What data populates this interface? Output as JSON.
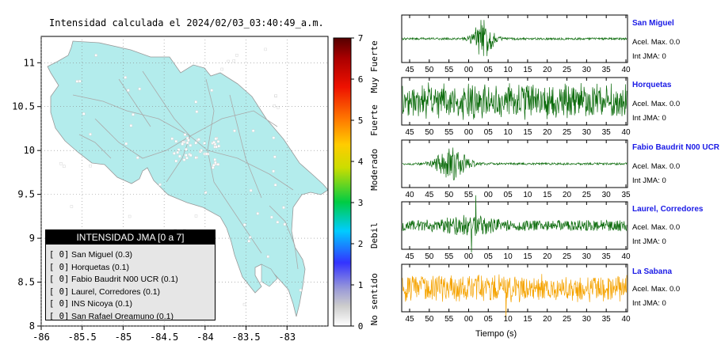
{
  "map": {
    "title": "Intensidad calculada el 2024/02/03_03:40:49_a.m.",
    "xticks": [
      "-86",
      "-85.5",
      "-85",
      "-84.5",
      "-84",
      "-83.5",
      "-83"
    ],
    "yticks": [
      "11",
      "10.5",
      "10",
      "9.5",
      "9",
      "8.5",
      "8"
    ],
    "land_color": "#b3ecec",
    "legend_title": "INTENSIDAD JMA [0 a 7]",
    "legend_items": [
      {
        "bracket": "[ 0]",
        "text": "San Miguel (0.3)"
      },
      {
        "bracket": "[ 0]",
        "text": "Horquetas (0.1)"
      },
      {
        "bracket": "[ 0]",
        "text": "Fabio Baudrit N00 UCR (0.1)"
      },
      {
        "bracket": "[ 0]",
        "text": "Laurel, Corredores (0.1)"
      },
      {
        "bracket": "[ 0]",
        "text": "INS Nicoya (0.1)"
      },
      {
        "bracket": "[ 0]",
        "text": "San Rafael Oreamuno (0.1)"
      }
    ]
  },
  "colorbar": {
    "ticks": [
      "7",
      "6",
      "5",
      "4",
      "3",
      "2",
      "1",
      "0"
    ],
    "labels": [
      "Muy Fuerte",
      "Fuerte",
      "Moderado",
      "Debil",
      "No sentido"
    ]
  },
  "stations": [
    {
      "name": "San Miguel",
      "acel": "Acel. Max. 0.0",
      "jma": "Int JMA: 0",
      "ticks": [
        "45",
        "50",
        "55",
        "00",
        "05",
        "10",
        "15",
        "20",
        "25",
        "30",
        "35",
        "40"
      ],
      "color": "#0b6b0b"
    },
    {
      "name": "Horquetas",
      "acel": "Acel. Max. 0.0",
      "jma": "Int JMA: 0",
      "ticks": [
        "45",
        "50",
        "55",
        "00",
        "05",
        "10",
        "15",
        "20",
        "25",
        "30",
        "35",
        "40"
      ],
      "color": "#0b6b0b"
    },
    {
      "name": "Fabio Baudrit N00 UCR",
      "acel": "Acel. Max. 0.0",
      "jma": "Int JMA: 0",
      "ticks": [
        "40",
        "45",
        "50",
        "55",
        "00",
        "05",
        "10",
        "15",
        "20",
        "25",
        "30",
        "35"
      ],
      "color": "#0b6b0b"
    },
    {
      "name": "Laurel, Corredores",
      "acel": "Acel. Max. 0.0",
      "jma": "Int JMA: 0",
      "ticks": [
        "45",
        "50",
        "55",
        "00",
        "05",
        "10",
        "15",
        "20",
        "25",
        "30",
        "35",
        "40"
      ],
      "color": "#0b6b0b"
    },
    {
      "name": "La Sabana",
      "acel": "Acel. Max. 0.0",
      "jma": "Int JMA: 0",
      "ticks": [
        "45",
        "50",
        "55",
        "00",
        "05",
        "10",
        "15",
        "20",
        "25",
        "30",
        "35",
        "40"
      ],
      "color": "#f5a300"
    }
  ],
  "xlabel": "Tiempo (s)",
  "chart_data": [
    {
      "type": "scatter",
      "title": "Intensidad calculada el 2024/02/03_03:40:49_a.m.",
      "xlim": [
        -86,
        -82.5
      ],
      "ylim": [
        8,
        11.3
      ],
      "colorbar_range": [
        0,
        7
      ],
      "legend": [
        "San Miguel (0.3)",
        "Horquetas (0.1)",
        "Fabio Baudrit N00 UCR (0.1)",
        "Laurel, Corredores (0.1)",
        "INS Nicoya (0.1)",
        "San Rafael Oreamuno (0.1)"
      ]
    },
    {
      "type": "line",
      "series": [
        {
          "name": "San Miguel",
          "acel_max": 0.0,
          "int_jma": 0
        },
        {
          "name": "Horquetas",
          "acel_max": 0.0,
          "int_jma": 0
        },
        {
          "name": "Fabio Baudrit N00 UCR",
          "acel_max": 0.0,
          "int_jma": 0
        },
        {
          "name": "Laurel, Corredores",
          "acel_max": 0.0,
          "int_jma": 0
        },
        {
          "name": "La Sabana",
          "acel_max": 0.0,
          "int_jma": 0
        }
      ],
      "xlabel": "Tiempo (s)"
    }
  ]
}
